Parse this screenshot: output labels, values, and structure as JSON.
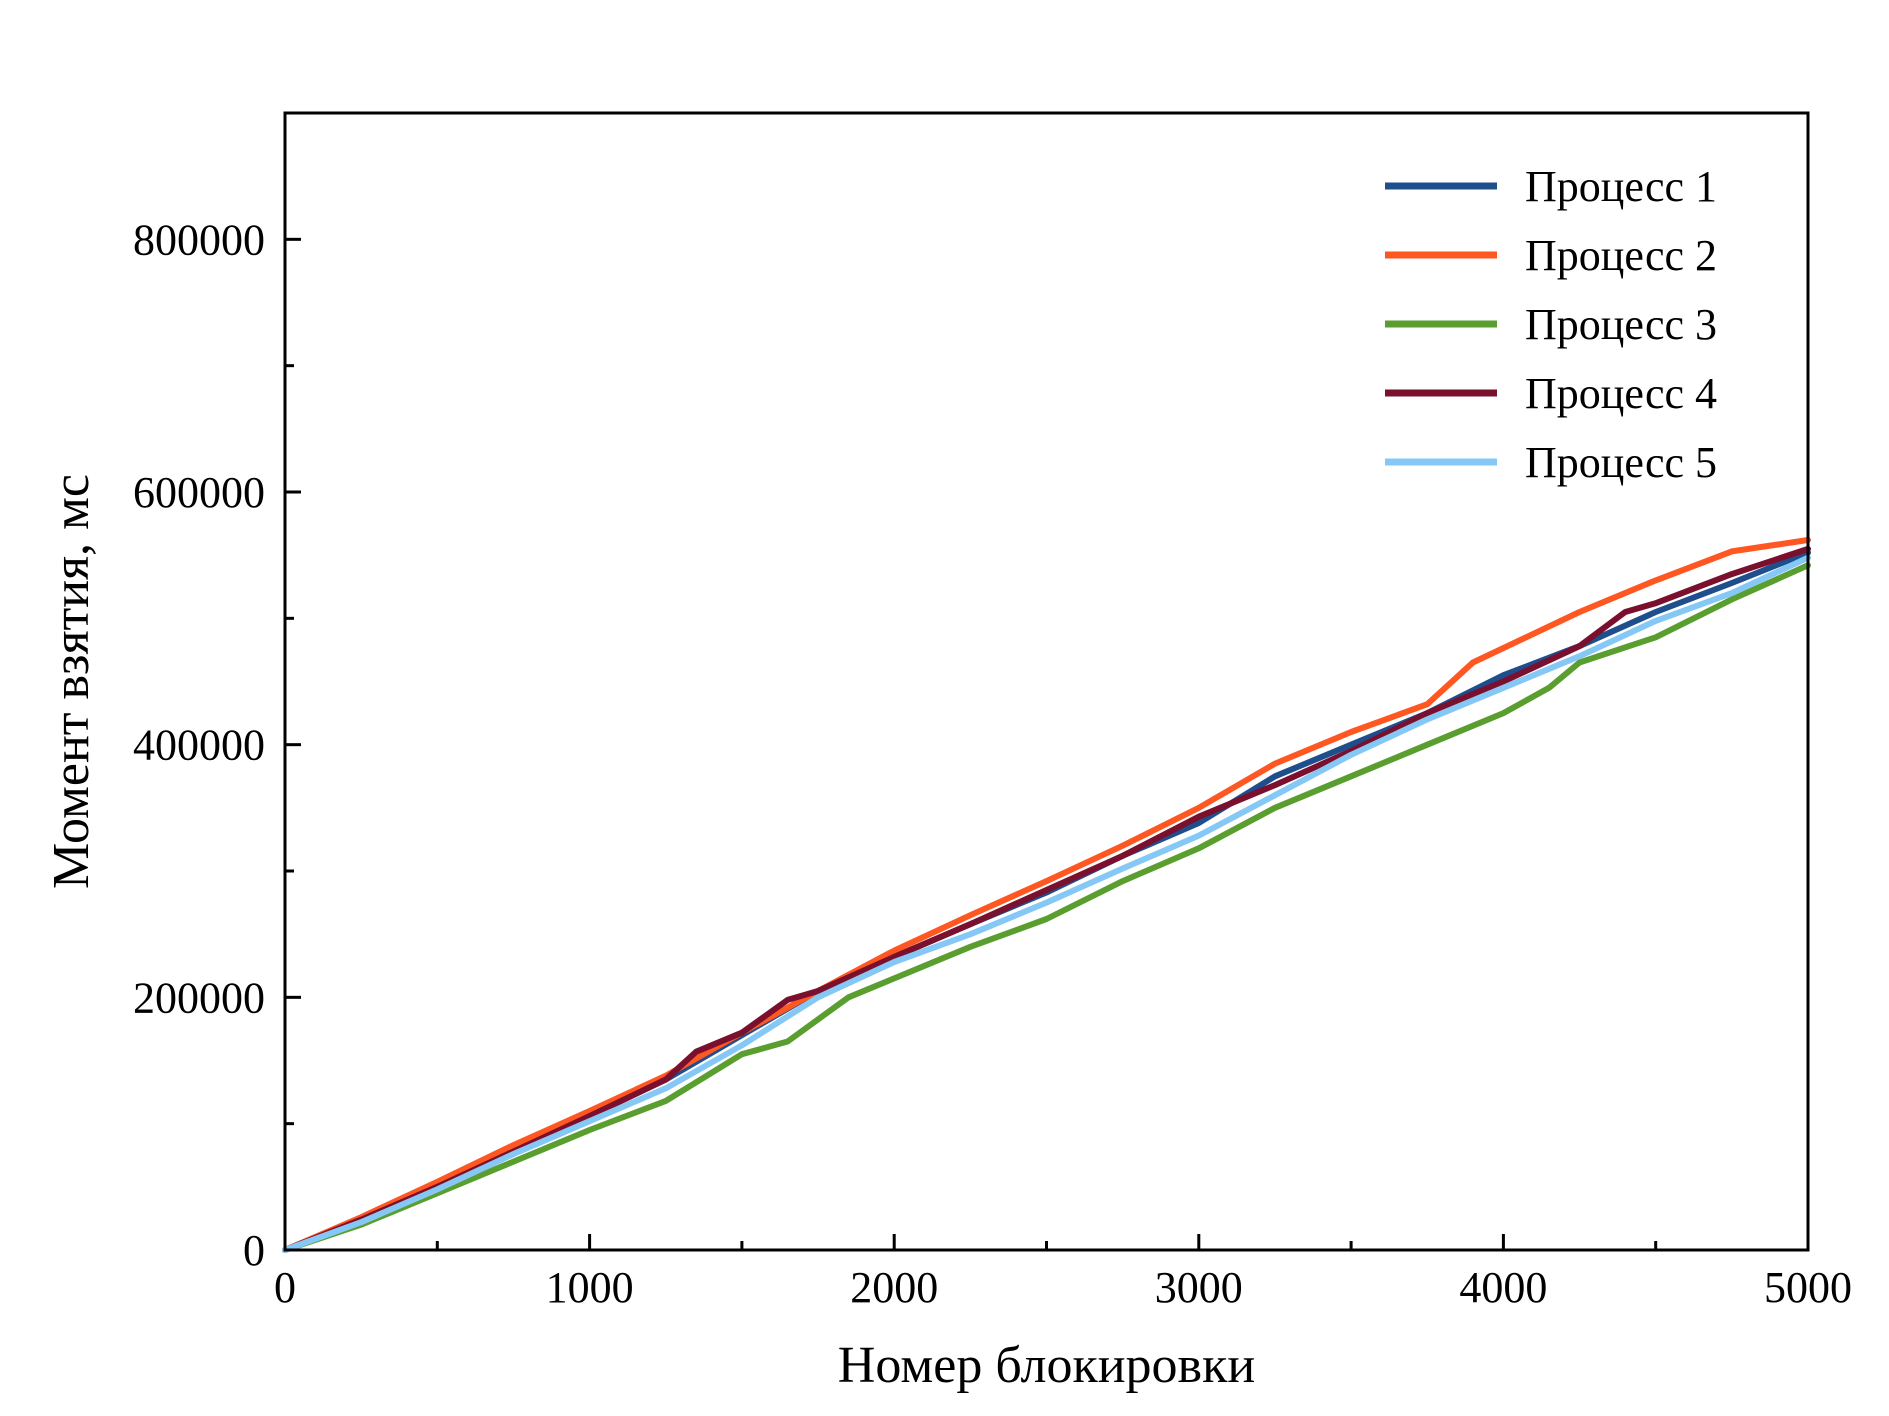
{
  "chart_data": {
    "type": "line",
    "title": "",
    "xlabel": "Номер блокировки",
    "ylabel": "Момент взятия, мс",
    "xlim": [
      0,
      5000
    ],
    "ylim": [
      0,
      900000
    ],
    "x_ticks": [
      0,
      1000,
      2000,
      3000,
      4000,
      5000
    ],
    "x_tick_labels": [
      "0",
      "1000",
      "2000",
      "3000",
      "4000",
      "5000"
    ],
    "x_minor_ticks": [
      500,
      1500,
      2500,
      3500,
      4500
    ],
    "y_ticks": [
      0,
      200000,
      400000,
      600000,
      800000
    ],
    "y_tick_labels": [
      "0",
      "200000",
      "400000",
      "600000",
      "800000"
    ],
    "y_minor_ticks": [
      100000,
      300000,
      500000,
      700000
    ],
    "grid": false,
    "legend_position": "top-right",
    "series": [
      {
        "name": "Процесс 1",
        "color": "#1f4e8c",
        "x": [
          0,
          250,
          500,
          750,
          1000,
          1250,
          1500,
          1750,
          2000,
          2250,
          2500,
          2750,
          3000,
          3250,
          3500,
          3750,
          4000,
          4250,
          4500,
          4750,
          5000
        ],
        "y": [
          0,
          25000,
          52000,
          80000,
          108000,
          135000,
          170000,
          205000,
          232000,
          258000,
          283000,
          312000,
          338000,
          375000,
          400000,
          425000,
          455000,
          478000,
          505000,
          528000,
          552000
        ]
      },
      {
        "name": "Процесс 2",
        "color": "#ff5722",
        "x": [
          0,
          250,
          500,
          750,
          1000,
          1250,
          1500,
          1750,
          2000,
          2250,
          2500,
          2750,
          3000,
          3250,
          3500,
          3750,
          3900,
          4250,
          4500,
          4750,
          5000
        ],
        "y": [
          0,
          26000,
          54000,
          83000,
          110000,
          138000,
          172000,
          205000,
          237000,
          265000,
          292000,
          320000,
          350000,
          385000,
          410000,
          432000,
          465000,
          505000,
          530000,
          553000,
          562000
        ]
      },
      {
        "name": "Процесс 3",
        "color": "#5a9e2f",
        "x": [
          0,
          250,
          500,
          750,
          1000,
          1250,
          1500,
          1650,
          1850,
          2000,
          2250,
          2500,
          2750,
          3000,
          3250,
          3500,
          3750,
          4000,
          4150,
          4250,
          4500,
          4750,
          5000
        ],
        "y": [
          0,
          20000,
          45000,
          70000,
          95000,
          118000,
          155000,
          165000,
          200000,
          215000,
          240000,
          262000,
          292000,
          318000,
          350000,
          375000,
          400000,
          425000,
          445000,
          465000,
          485000,
          515000,
          542000
        ]
      },
      {
        "name": "Процесс 4",
        "color": "#7a0f2e",
        "x": [
          0,
          250,
          500,
          750,
          1000,
          1250,
          1350,
          1500,
          1650,
          1750,
          2000,
          2250,
          2500,
          2750,
          3000,
          3250,
          3500,
          3750,
          4000,
          4250,
          4400,
          4500,
          4750,
          5000
        ],
        "y": [
          0,
          24000,
          50000,
          78000,
          106000,
          135000,
          157000,
          172000,
          198000,
          205000,
          232000,
          258000,
          285000,
          312000,
          343000,
          368000,
          395000,
          425000,
          450000,
          478000,
          505000,
          512000,
          535000,
          555000
        ]
      },
      {
        "name": "Процесс 5",
        "color": "#85c8f5",
        "x": [
          0,
          250,
          500,
          750,
          1000,
          1250,
          1500,
          1750,
          2000,
          2250,
          2500,
          2750,
          3000,
          3250,
          3500,
          3750,
          4000,
          4250,
          4500,
          4750,
          5000
        ],
        "y": [
          0,
          22000,
          48000,
          76000,
          102000,
          128000,
          162000,
          200000,
          228000,
          250000,
          275000,
          302000,
          328000,
          360000,
          392000,
          420000,
          445000,
          470000,
          498000,
          520000,
          548000
        ]
      }
    ]
  }
}
